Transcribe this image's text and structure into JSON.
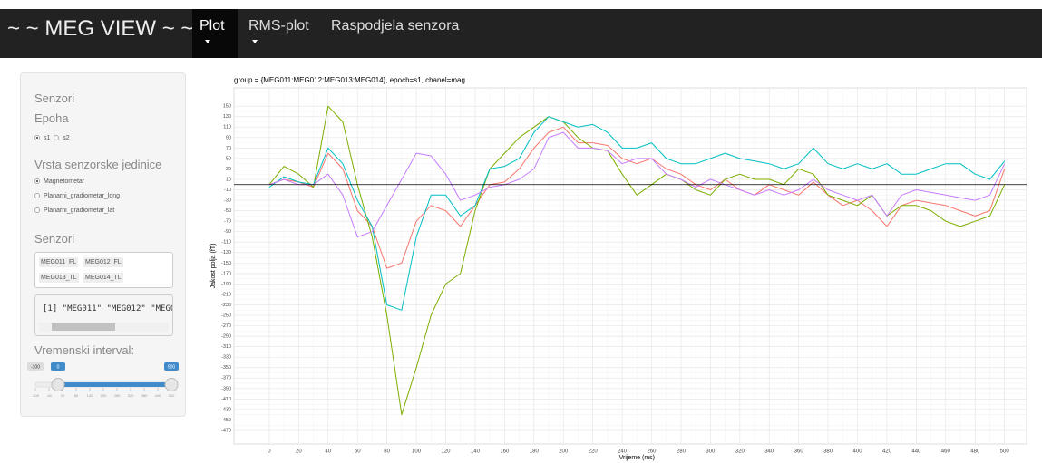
{
  "navbar": {
    "brand": "~ ~ MEG VIEW ~ ~",
    "tabs": [
      "Plot",
      "RMS-plot",
      "Raspodjela senzora"
    ]
  },
  "sidebar": {
    "heading": "Senzori",
    "epoch_label": "Epoha",
    "epoch_options": [
      "s1",
      "s2"
    ],
    "unit_label": "Vrsta senzorske jedinice",
    "unit_options": [
      "Magnetometar",
      "Planarni_gradiometar_long",
      "Planarni_gradiometar_lat"
    ],
    "sensors_label": "Senzori",
    "sensors": [
      "MEG011_FL",
      "MEG012_FL",
      "MEG013_TL",
      "MEG014_TL"
    ],
    "output": "[1] \"MEG011\" \"MEG012\" \"MEG0",
    "interval_label": "Vremenski interval:",
    "slider": {
      "min": -100,
      "max": 500,
      "from": 0,
      "to": 500,
      "ticks": [
        -100,
        -40,
        20,
        80,
        140,
        200,
        260,
        320,
        380,
        440,
        500
      ]
    }
  },
  "chart_data": {
    "type": "line",
    "title": "group = {MEG011:MEG012:MEG013:MEG014}, epoch=s1, chanel=mag",
    "x_label": "Vrijeme (ms)",
    "y_label": "Jakost polja (fT)",
    "x": [
      0,
      10,
      20,
      30,
      40,
      50,
      60,
      70,
      80,
      90,
      100,
      110,
      120,
      130,
      140,
      150,
      160,
      170,
      180,
      190,
      200,
      210,
      220,
      230,
      240,
      250,
      260,
      270,
      280,
      290,
      300,
      310,
      320,
      330,
      340,
      350,
      360,
      370,
      380,
      390,
      400,
      410,
      420,
      430,
      440,
      450,
      460,
      470,
      480,
      490,
      500
    ],
    "series": [
      {
        "color": "#F8766D",
        "values": [
          0,
          10,
          5,
          -5,
          60,
          30,
          -50,
          -80,
          -160,
          -150,
          -70,
          -40,
          -50,
          -80,
          -40,
          0,
          5,
          30,
          70,
          100,
          110,
          80,
          80,
          75,
          50,
          40,
          50,
          30,
          20,
          0,
          -10,
          10,
          -10,
          -20,
          0,
          -10,
          -20,
          5,
          -20,
          -40,
          -30,
          -50,
          -80,
          -40,
          -30,
          -35,
          -40,
          -50,
          -60,
          -50,
          30
        ]
      },
      {
        "color": "#7CAE00",
        "values": [
          0,
          35,
          20,
          -5,
          150,
          120,
          0,
          -100,
          -250,
          -440,
          -350,
          -250,
          -190,
          -170,
          -50,
          30,
          60,
          90,
          110,
          130,
          120,
          90,
          70,
          65,
          20,
          -20,
          0,
          20,
          10,
          -10,
          -20,
          10,
          20,
          10,
          10,
          0,
          30,
          20,
          -20,
          -30,
          -40,
          -20,
          -60,
          -40,
          -40,
          -50,
          -70,
          -80,
          -70,
          -60,
          0
        ]
      },
      {
        "color": "#00BFC4",
        "values": [
          -5,
          15,
          5,
          0,
          70,
          40,
          -30,
          -80,
          -230,
          -240,
          -100,
          -20,
          -20,
          -60,
          -40,
          30,
          35,
          50,
          100,
          130,
          120,
          110,
          115,
          100,
          70,
          70,
          80,
          50,
          40,
          40,
          50,
          60,
          50,
          45,
          40,
          30,
          40,
          70,
          40,
          30,
          40,
          30,
          40,
          20,
          20,
          30,
          40,
          40,
          20,
          10,
          45
        ]
      },
      {
        "color": "#C77CFF",
        "values": [
          0,
          10,
          0,
          0,
          20,
          -20,
          -100,
          -90,
          -40,
          10,
          60,
          55,
          20,
          -30,
          -20,
          -5,
          0,
          10,
          30,
          90,
          100,
          70,
          70,
          65,
          40,
          50,
          50,
          20,
          10,
          -5,
          10,
          0,
          -10,
          -20,
          -10,
          -20,
          -10,
          10,
          -10,
          -20,
          -30,
          -20,
          -60,
          -20,
          -10,
          -15,
          -20,
          -25,
          -30,
          -20,
          40
        ]
      }
    ],
    "hline": 0,
    "xlim": [
      -24,
      515
    ],
    "ylim": [
      -496,
      185
    ],
    "xticks": [
      0,
      20,
      40,
      60,
      80,
      100,
      120,
      140,
      160,
      180,
      200,
      220,
      240,
      260,
      280,
      300,
      320,
      340,
      360,
      380,
      400,
      420,
      440,
      460,
      480,
      500
    ],
    "yticks": [
      150,
      130,
      110,
      90,
      70,
      50,
      30,
      10,
      -10,
      -30,
      -50,
      -70,
      -90,
      -110,
      -130,
      -150,
      -170,
      -190,
      -210,
      -230,
      -250,
      -270,
      -290,
      -310,
      -330,
      -350,
      -370,
      -390,
      -410,
      -430,
      -450,
      -470
    ],
    "grid": true
  }
}
